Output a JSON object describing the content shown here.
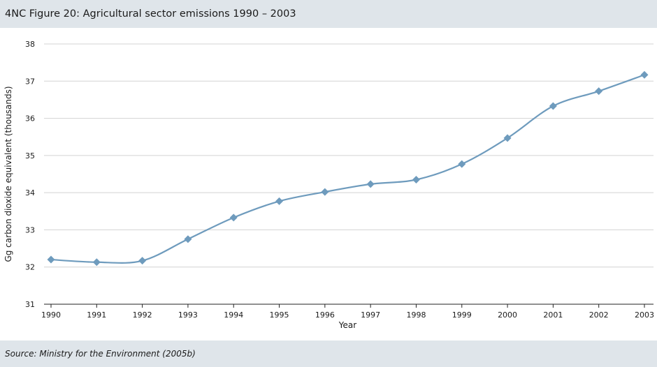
{
  "header": {
    "title": "4NC Figure 20: Agricultural sector emissions 1990 – 2003"
  },
  "footer": {
    "source": "Source: Ministry for the Environment (2005b)"
  },
  "colors": {
    "band": "#dfe5ea",
    "series": "#6e9bbd",
    "grid": "#d3d3d3",
    "axis": "#222222"
  },
  "chart_data": {
    "type": "line",
    "title": "4NC Figure 20: Agricultural sector emissions 1990 – 2003",
    "xlabel": "Year",
    "ylabel": "Gg carbon dioxide equivalent (thousands)",
    "x": [
      "1990",
      "1991",
      "1992",
      "1993",
      "1994",
      "1995",
      "1996",
      "1997",
      "1998",
      "1999",
      "2000",
      "2001",
      "2002",
      "2003"
    ],
    "yticks": [
      "31",
      "32",
      "33",
      "34",
      "35",
      "36",
      "37",
      "38"
    ],
    "ylim": [
      31,
      38
    ],
    "grid": true,
    "series": [
      {
        "values": [
          32.2,
          32.13,
          32.17,
          32.75,
          33.33,
          33.77,
          34.02,
          34.23,
          34.35,
          34.77,
          35.47,
          36.33,
          36.73,
          37.17
        ]
      }
    ]
  }
}
